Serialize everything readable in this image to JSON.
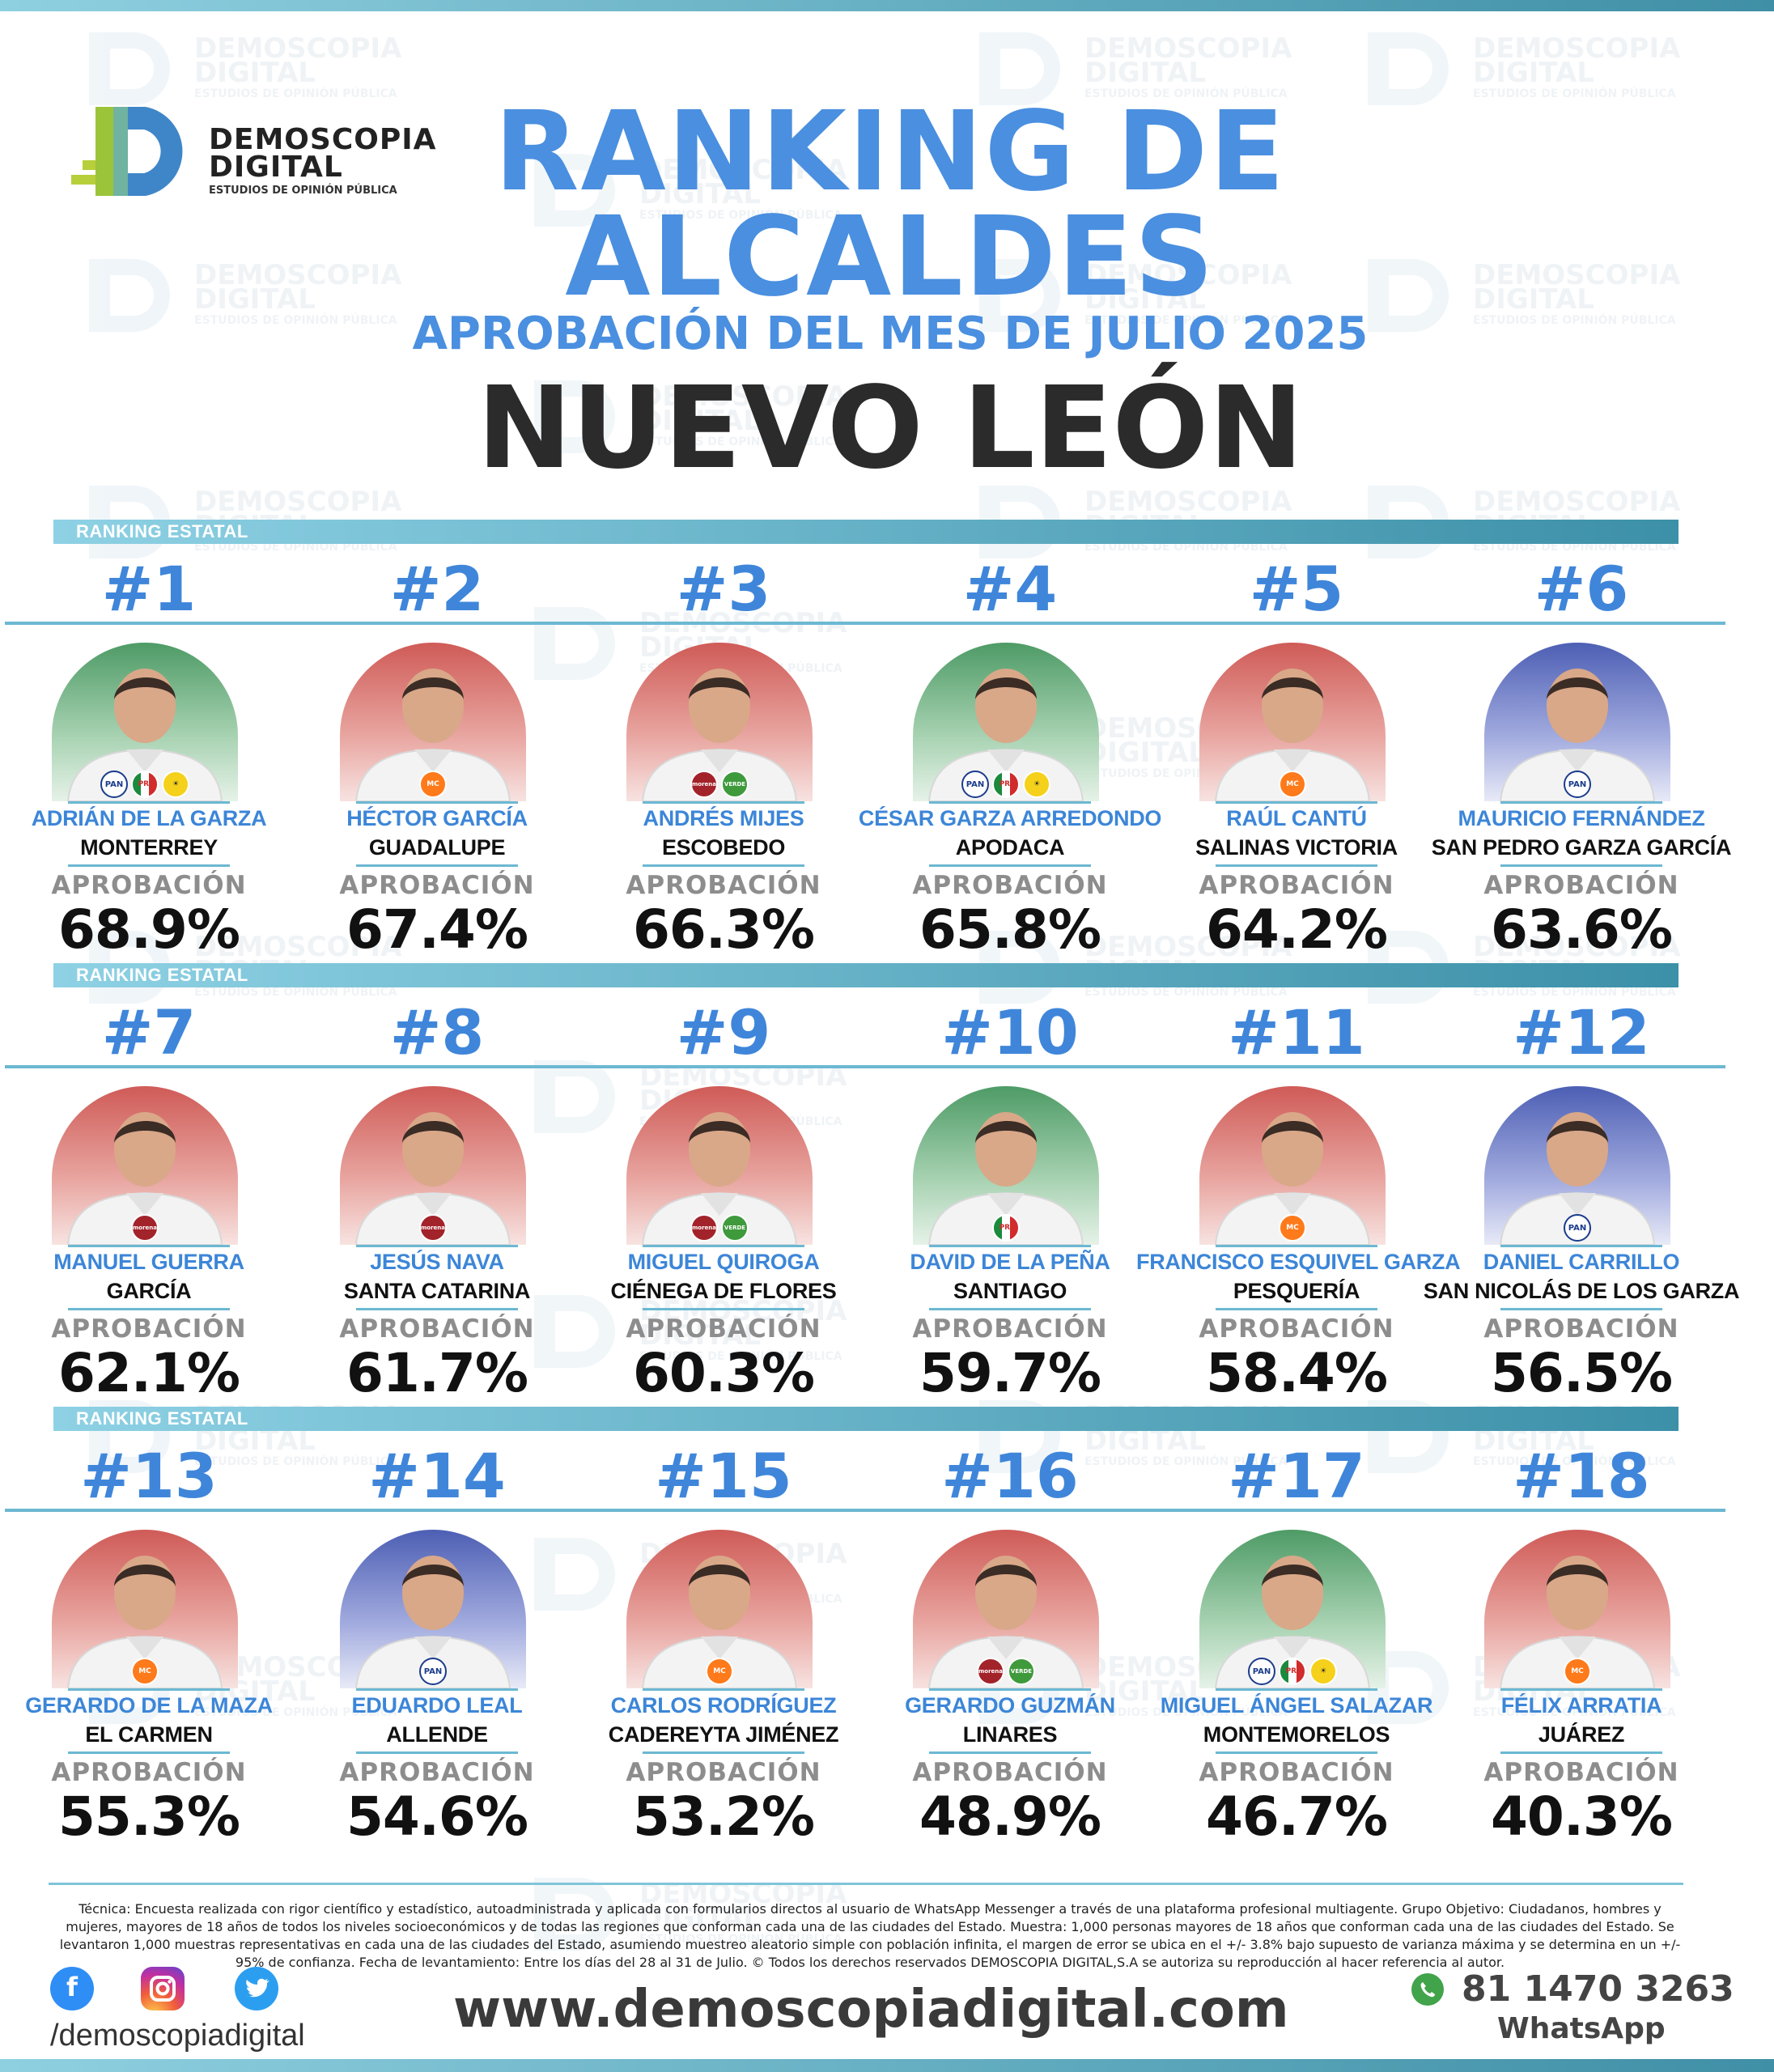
{
  "brand": {
    "name_line1": "DEMOSCOPIA",
    "name_line2": "DIGITAL",
    "tagline": "ESTUDIOS DE OPINIÓN PÚBLICA"
  },
  "header": {
    "title_line1": "RANKING DE",
    "title_line2": "ALCALDES",
    "subtitle": "APROBACIÓN DEL MES DE JULIO 2025",
    "state": "NUEVO LEÓN"
  },
  "section_label": "RANKING ESTATAL",
  "approval_label": "APROBACIÓN",
  "rows": [
    [
      {
        "rank": "#1",
        "name": "ADRIÁN DE LA GARZA",
        "city": "MONTERREY",
        "approval": "68.9%",
        "bg": "green",
        "parties": [
          "PAN",
          "PRI",
          "PRD"
        ]
      },
      {
        "rank": "#2",
        "name": "HÉCTOR GARCÍA",
        "city": "GUADALUPE",
        "approval": "67.4%",
        "bg": "red",
        "parties": [
          "MC"
        ]
      },
      {
        "rank": "#3",
        "name": "ANDRÉS MIJES",
        "city": "ESCOBEDO",
        "approval": "66.3%",
        "bg": "red",
        "parties": [
          "MORENA",
          "VERDE"
        ]
      },
      {
        "rank": "#4",
        "name": "CÉSAR GARZA ARREDONDO",
        "city": "APODACA",
        "approval": "65.8%",
        "bg": "green",
        "parties": [
          "PAN",
          "PRI",
          "PRD"
        ]
      },
      {
        "rank": "#5",
        "name": "RAÚL CANTÚ",
        "city": "SALINAS VICTORIA",
        "approval": "64.2%",
        "bg": "red",
        "parties": [
          "MC"
        ]
      },
      {
        "rank": "#6",
        "name": "MAURICIO FERNÁNDEZ",
        "city": "SAN PEDRO GARZA GARCÍA",
        "approval": "63.6%",
        "bg": "blue",
        "parties": [
          "PAN"
        ]
      }
    ],
    [
      {
        "rank": "#7",
        "name": "MANUEL GUERRA",
        "city": "GARCÍA",
        "approval": "62.1%",
        "bg": "red",
        "parties": [
          "MORENA"
        ]
      },
      {
        "rank": "#8",
        "name": "JESÚS NAVA",
        "city": "SANTA CATARINA",
        "approval": "61.7%",
        "bg": "red",
        "parties": [
          "MORENA"
        ]
      },
      {
        "rank": "#9",
        "name": "MIGUEL QUIROGA",
        "city": "CIÉNEGA DE FLORES",
        "approval": "60.3%",
        "bg": "red",
        "parties": [
          "MORENA",
          "VERDE"
        ]
      },
      {
        "rank": "#10",
        "name": "DAVID DE LA PEÑA",
        "city": "SANTIAGO",
        "approval": "59.7%",
        "bg": "green",
        "parties": [
          "PRI"
        ]
      },
      {
        "rank": "#11",
        "name": "FRANCISCO ESQUIVEL GARZA",
        "city": "PESQUERÍA",
        "approval": "58.4%",
        "bg": "red",
        "parties": [
          "MC"
        ]
      },
      {
        "rank": "#12",
        "name": "DANIEL CARRILLO",
        "city": "SAN NICOLÁS DE LOS GARZA",
        "approval": "56.5%",
        "bg": "blue",
        "parties": [
          "PAN"
        ]
      }
    ],
    [
      {
        "rank": "#13",
        "name": "GERARDO DE LA MAZA",
        "city": "EL CARMEN",
        "approval": "55.3%",
        "bg": "red",
        "parties": [
          "MC"
        ]
      },
      {
        "rank": "#14",
        "name": "EDUARDO LEAL",
        "city": "ALLENDE",
        "approval": "54.6%",
        "bg": "blue",
        "parties": [
          "PAN"
        ]
      },
      {
        "rank": "#15",
        "name": "CARLOS RODRÍGUEZ",
        "city": "CADEREYTA JIMÉNEZ",
        "approval": "53.2%",
        "bg": "red",
        "parties": [
          "MC"
        ]
      },
      {
        "rank": "#16",
        "name": "GERARDO GUZMÁN",
        "city": "LINARES",
        "approval": "48.9%",
        "bg": "red",
        "parties": [
          "MORENA",
          "VERDE"
        ]
      },
      {
        "rank": "#17",
        "name": "MIGUEL ÁNGEL SALAZAR",
        "city": "MONTEMORELOS",
        "approval": "46.7%",
        "bg": "green",
        "parties": [
          "PAN",
          "PRI",
          "PRD"
        ]
      },
      {
        "rank": "#18",
        "name": "FÉLIX ARRATIA",
        "city": "JUÁREZ",
        "approval": "40.3%",
        "bg": "red",
        "parties": [
          "MC"
        ]
      }
    ]
  ],
  "footer": {
    "methodology": "Técnica: Encuesta realizada con rigor científico y estadístico, autoadministrada y aplicada con formularios directos al usuario de WhatsApp Messenger a través de una plataforma profesional multiagente. Grupo Objetivo: Ciudadanos, hombres y mujeres, mayores de 18 años de todos los niveles socioeconómicos y de todas las regiones que conforman cada una de las ciudades del Estado. Muestra: 1,000 personas mayores de 18 años que conforman cada una de las ciudades del Estado. Se levantaron 1,000 muestras representativas en cada una de las ciudades del Estado, asumiendo muestreo aleatorio simple con población infinita, el margen de error se ubica en el +/- 3.8% bajo supuesto de varianza máxima y se determina en un +/- 95% de confianza. Fecha de levantamiento: Entre los días del 28 al 31 de Julio. © Todos los derechos reservados DEMOSCOPIA DIGITAL,S.A se autoriza su reproducción al hacer referencia al autor.",
    "handle": "/demoscopiadigital",
    "website": "www.demoscopiadigital.com",
    "phone": "81 1470 3263",
    "phone_label": "WhatsApp"
  },
  "colors": {
    "accent": "#4a8fe0",
    "bar": "#3c90a8",
    "bg_green": "#4e9b66",
    "bg_red": "#cf5b57",
    "bg_blue": "#4d5fb4"
  },
  "icons": {
    "facebook": "facebook-icon",
    "instagram": "instagram-icon",
    "twitter": "twitter-icon",
    "whatsapp": "whatsapp-icon"
  }
}
